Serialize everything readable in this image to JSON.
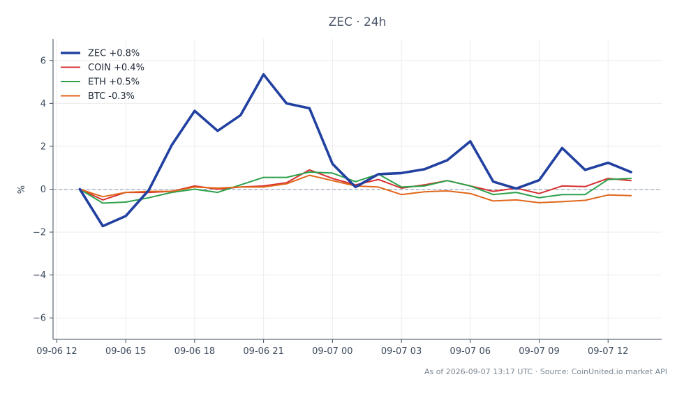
{
  "chart_data": {
    "type": "line",
    "title": "ZEC · 24h",
    "xlabel": "",
    "ylabel": "%",
    "ylim": [
      -7,
      7
    ],
    "yticks": [
      -6,
      -4,
      -2,
      0,
      2,
      4,
      6
    ],
    "ytick_labels": [
      "−6",
      "−4",
      "−2",
      "0",
      "2",
      "4",
      "6"
    ],
    "xlim": [
      "2026-09-06 11:50",
      "2026-09-07 14:20"
    ],
    "xticks": [
      "2026-09-06 12:00",
      "2026-09-06 15:00",
      "2026-09-06 18:00",
      "2026-09-06 21:00",
      "2026-09-07 00:00",
      "2026-09-07 03:00",
      "2026-09-07 06:00",
      "2026-09-07 09:00",
      "2026-09-07 12:00"
    ],
    "xtick_labels": [
      "09-06 12",
      "09-06 15",
      "09-06 18",
      "09-06 21",
      "09-07 00",
      "09-07 03",
      "09-07 06",
      "09-07 09",
      "09-07 12"
    ],
    "x": [
      "2026-09-06 13:00",
      "2026-09-06 14:00",
      "2026-09-06 15:00",
      "2026-09-06 16:00",
      "2026-09-06 17:00",
      "2026-09-06 18:00",
      "2026-09-06 19:00",
      "2026-09-06 20:00",
      "2026-09-06 21:00",
      "2026-09-06 22:00",
      "2026-09-06 23:00",
      "2026-09-07 00:00",
      "2026-09-07 01:00",
      "2026-09-07 02:00",
      "2026-09-07 03:00",
      "2026-09-07 04:00",
      "2026-09-07 05:00",
      "2026-09-07 06:00",
      "2026-09-07 07:00",
      "2026-09-07 08:00",
      "2026-09-07 09:00",
      "2026-09-07 10:00",
      "2026-09-07 11:00",
      "2026-09-07 12:00",
      "2026-09-07 13:00"
    ],
    "series": [
      {
        "name": "COIN +0.4%",
        "color": "#d62f2f",
        "width": 2,
        "values": [
          0.0,
          -0.5,
          -0.15,
          -0.15,
          -0.1,
          0.15,
          0.0,
          0.1,
          0.15,
          0.3,
          0.9,
          0.5,
          0.2,
          0.45,
          0.05,
          0.2,
          0.4,
          0.15,
          -0.1,
          0.05,
          -0.2,
          0.15,
          0.12,
          0.5,
          0.4
        ]
      },
      {
        "name": "ETH +0.5%",
        "color": "#2ca14a",
        "width": 2,
        "values": [
          0.0,
          -0.65,
          -0.6,
          -0.4,
          -0.15,
          0.0,
          -0.15,
          0.2,
          0.55,
          0.55,
          0.8,
          0.75,
          0.35,
          0.7,
          0.1,
          0.15,
          0.4,
          0.15,
          -0.25,
          -0.15,
          -0.4,
          -0.25,
          -0.25,
          0.45,
          0.5
        ]
      },
      {
        "name": "BTC -0.3%",
        "color": "#e0661a",
        "width": 2,
        "values": [
          0.0,
          -0.35,
          -0.15,
          -0.1,
          -0.1,
          0.1,
          0.05,
          0.1,
          0.1,
          0.25,
          0.65,
          0.4,
          0.15,
          0.1,
          -0.25,
          -0.12,
          -0.08,
          -0.2,
          -0.55,
          -0.5,
          -0.63,
          -0.58,
          -0.52,
          -0.27,
          -0.3
        ]
      },
      {
        "name": "ZEC +0.8%",
        "color": "#2140a0",
        "width": 3.6,
        "values": [
          0.0,
          -1.72,
          -1.25,
          -0.05,
          2.05,
          3.65,
          2.72,
          3.45,
          5.35,
          4.0,
          3.77,
          1.18,
          0.1,
          0.7,
          0.75,
          0.93,
          1.35,
          2.23,
          0.35,
          0.03,
          0.42,
          1.92,
          0.9,
          1.23,
          0.8
        ]
      }
    ],
    "legend": [
      "ZEC +0.8%",
      "COIN +0.4%",
      "ETH +0.5%",
      "BTC -0.3%"
    ],
    "legend_placement": "top-left",
    "zero_line": true,
    "grid": true
  },
  "footer": "As of 2026-09-07 13:17 UTC · Source: CoinUnited.io market API"
}
